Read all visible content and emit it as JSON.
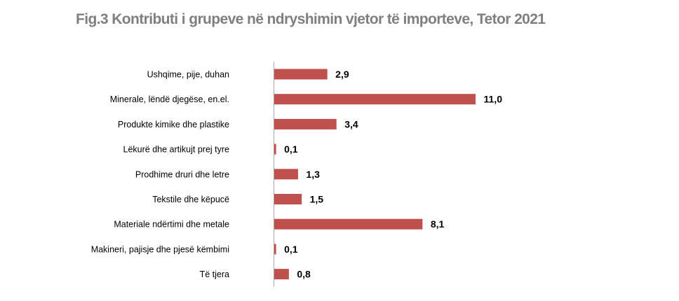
{
  "title": "Fig.3 Kontributi i grupeve në ndryshimin vjetor të importeve, Tetor 2021",
  "chart_data": {
    "type": "bar",
    "orientation": "horizontal",
    "title": "Fig.3 Kontributi i grupeve në ndryshimin vjetor të importeve, Tetor 2021",
    "categories": [
      "Ushqime, pije, duhan",
      "Minerale, lëndë djegëse, en.el.",
      "Produkte kimike dhe plastike",
      "Lëkurë dhe artikujt prej tyre",
      "Prodhime druri dhe letre",
      "Tekstile dhe këpucë",
      "Materiale ndërtimi dhe metale",
      "Makineri, pajisje dhe pjesë këmbimi",
      "Të tjera"
    ],
    "values": [
      2.9,
      11.0,
      3.4,
      0.1,
      1.3,
      1.5,
      8.1,
      0.1,
      0.8
    ],
    "value_labels": [
      "2,9",
      "11,0",
      "3,4",
      "0,1",
      "1,3",
      "1,5",
      "8,1",
      "0,1",
      "0,8"
    ],
    "xlim": [
      0,
      11.0
    ],
    "grid": false,
    "legend": "none",
    "bar_color": "#c0504d",
    "axis_color": "#a6a6a6"
  }
}
